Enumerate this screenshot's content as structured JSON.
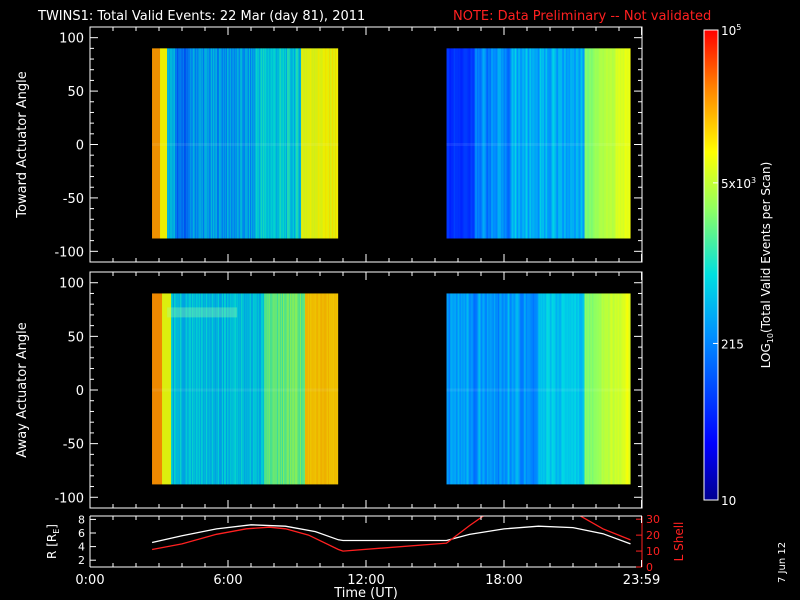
{
  "header": {
    "title": "TWINS1: Total Valid Events: 22 Mar (day  81), 2011",
    "note": "NOTE: Data Preliminary -- Not validated"
  },
  "footer": {
    "date_stamp": "7 Jun 12"
  },
  "colors": {
    "background": "#000000",
    "axes": "#ffffff",
    "note": "#ff2020",
    "r_line": "#ffffff",
    "lshell_line": "#ff2020"
  },
  "chart_data": [
    {
      "type": "heatmap",
      "ylabel": "Toward Actuator Angle",
      "ylim": [
        -110,
        110
      ],
      "yticks": [
        100,
        50,
        0,
        -50,
        -100
      ],
      "xlim": [
        0,
        24
      ],
      "segments": [
        {
          "start_hour": 2.7,
          "end_hour": 10.8,
          "y_range": [
            -88,
            90
          ],
          "profile": "toward1"
        },
        {
          "start_hour": 15.5,
          "end_hour": 23.5,
          "y_range": [
            -88,
            90
          ],
          "profile": "toward2"
        }
      ]
    },
    {
      "type": "heatmap",
      "ylabel": "Away Actuator Angle",
      "ylim": [
        -110,
        110
      ],
      "yticks": [
        100,
        50,
        0,
        -50,
        -100
      ],
      "xlim": [
        0,
        24
      ],
      "segments": [
        {
          "start_hour": 2.7,
          "end_hour": 10.8,
          "y_range": [
            -88,
            90
          ],
          "profile": "away1"
        },
        {
          "start_hour": 15.5,
          "end_hour": 23.5,
          "y_range": [
            -88,
            90
          ],
          "profile": "away2"
        }
      ]
    },
    {
      "type": "line",
      "ylabel": "R [R",
      "ylabel_sub": "E",
      "ylabel_end": "]",
      "ylim": [
        1,
        8.5
      ],
      "yticks": [
        2,
        4,
        6,
        8
      ],
      "y2label": "L Shell",
      "y2lim": [
        0,
        32
      ],
      "y2ticks": [
        0,
        10,
        20,
        30
      ],
      "xlabel": "Time (UT)",
      "xticks": [
        {
          "hour": 0,
          "label": "0:00"
        },
        {
          "hour": 6,
          "label": "6:00"
        },
        {
          "hour": 12,
          "label": "12:00"
        },
        {
          "hour": 18,
          "label": "18:00"
        },
        {
          "hour": 23.98,
          "label": "23:59"
        }
      ],
      "series": [
        {
          "axis": "left",
          "color": "#ffffff",
          "points": [
            [
              2.7,
              4.6
            ],
            [
              4,
              5.6
            ],
            [
              5.5,
              6.6
            ],
            [
              7,
              7.2
            ],
            [
              8.5,
              7.0
            ],
            [
              9.8,
              6.2
            ],
            [
              10.8,
              5.0
            ],
            [
              11,
              4.9
            ],
            [
              15.5,
              4.9
            ],
            [
              16.5,
              5.8
            ],
            [
              18,
              6.6
            ],
            [
              19.5,
              7.0
            ],
            [
              21,
              6.8
            ],
            [
              22.3,
              5.9
            ],
            [
              23.5,
              4.4
            ]
          ]
        },
        {
          "axis": "right",
          "color": "#ff2020",
          "points": [
            [
              2.7,
              11
            ],
            [
              4,
              14.5
            ],
            [
              5.5,
              20.5
            ],
            [
              6.8,
              24
            ],
            [
              7.8,
              25
            ],
            [
              8.5,
              24
            ],
            [
              9.5,
              20
            ],
            [
              10.8,
              11
            ],
            [
              11,
              10
            ],
            [
              15.5,
              15
            ],
            [
              16.5,
              26
            ],
            [
              17.2,
              33
            ]
          ]
        },
        {
          "axis": "right",
          "color": "#ff2020",
          "points": [
            [
              21.2,
              33
            ],
            [
              22.3,
              24
            ],
            [
              23.5,
              17
            ]
          ]
        }
      ]
    }
  ],
  "colorbar": {
    "label": "LOG",
    "label_sub": "10",
    "label_end": "(Total Valid Events per Scan)",
    "scale": "log",
    "range": [
      10,
      100000
    ],
    "ticks": [
      {
        "value": 10,
        "label": "10"
      },
      {
        "value": 215,
        "label": "215"
      },
      {
        "value": 5000,
        "label": "5x10",
        "sup": "3"
      },
      {
        "value": 100000,
        "label": "10",
        "sup": "5"
      }
    ]
  }
}
